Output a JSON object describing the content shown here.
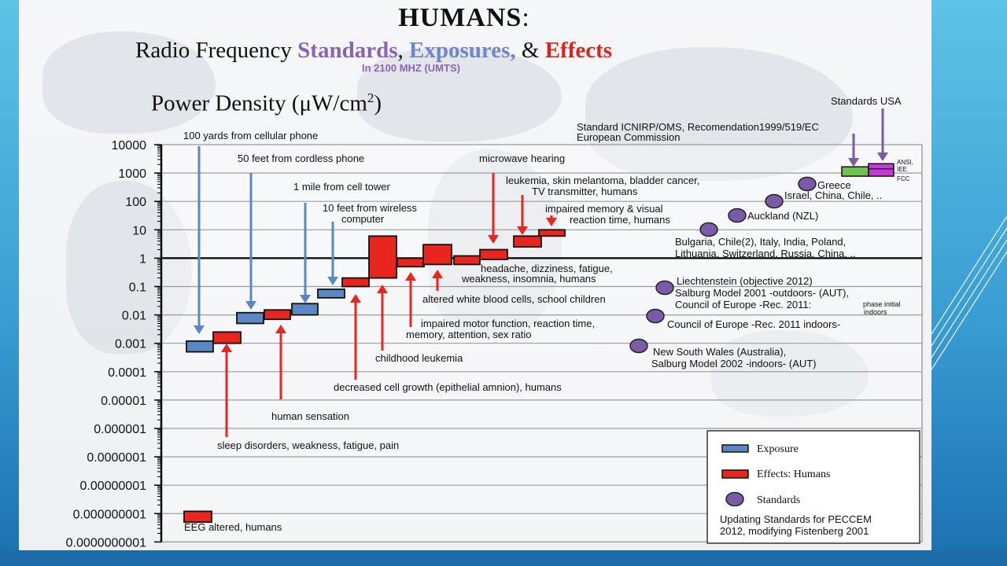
{
  "slide": {
    "title": "HUMANS",
    "title_colon": ":",
    "subtitle_prefix": "Radio Frequency ",
    "subtitle_standards": "Standards",
    "subtitle_comma": ", ",
    "subtitle_exposures": "Exposures,",
    "subtitle_and": " & ",
    "subtitle_effects": "Effects",
    "band_note": "In 2100 MHZ (UMTS)",
    "colors": {
      "exposure": "#5b87c5",
      "effect": "#e8261f",
      "standard": "#7a5ba8",
      "frame_left": "#49aedb",
      "frame_bottom": "#1c6aa8"
    }
  },
  "chart_data": {
    "type": "bar",
    "ylabel": "Power Density (μW/cm²)",
    "yscale": "log",
    "ylim": [
      1e-10,
      10000.0
    ],
    "y_ticks": [
      "10000",
      "1000",
      "100",
      "10",
      "1",
      "0.1",
      "0.01",
      "0.001",
      "0.0001",
      "0.00001",
      "0.000001",
      "0.0000001",
      "0.00000001",
      "0.000000001",
      "0.0000000001"
    ],
    "grid": true,
    "reference_line": 1,
    "exposures": [
      {
        "label": "100 yards from cellular phone",
        "low": 0.0005,
        "high": 0.0012
      },
      {
        "label": "50 feet from cordless phone",
        "low": 0.005,
        "high": 0.012
      },
      {
        "label": "1 mile from cell tower",
        "low": 0.01,
        "high": 0.025
      },
      {
        "label": "10 feet from wireless computer",
        "low": 0.04,
        "high": 0.08
      }
    ],
    "effects": [
      {
        "label": "sleep disorders, weakness, fatigue, pain",
        "low": 0.001,
        "high": 0.0025
      },
      {
        "label": "human sensation",
        "low": 0.007,
        "high": 0.015
      },
      {
        "label": "decreased cell growth (epithelial amnion), humans",
        "low": 0.1,
        "high": 0.2
      },
      {
        "label": "childhood leukemia",
        "low": 0.2,
        "high": 6
      },
      {
        "label": "impaired motor function, reaction time, memory, attention, sex ratio",
        "low": 0.5,
        "high": 1
      },
      {
        "label": "altered white blood cells, school children",
        "low": 0.6,
        "high": 3
      },
      {
        "label": "headache, dizziness, fatigue, weakness, insomnia, humans",
        "low": 0.6,
        "high": 1.2
      },
      {
        "label": "microwave hearing",
        "low": 0.9,
        "high": 2
      },
      {
        "label": "leukemia, skin melantoma, bladder cancer, TV transmitter, humans",
        "low": 2.5,
        "high": 6
      },
      {
        "label": "impaired memory & visual reaction time, humans",
        "low": 6,
        "high": 10
      },
      {
        "label": "EEG altered, humans",
        "low": 5e-10,
        "high": 1.2e-09
      }
    ],
    "standards": [
      {
        "label": "Greece",
        "value": 400
      },
      {
        "label": "Israel, China, Chile, ..",
        "value": 100
      },
      {
        "label": "Auckland (NZL)",
        "value": 30
      },
      {
        "label": "Bulgaria, Chile(2), Italy, India, Poland, Lithuania, Switzerland, Russia, China, ..",
        "value": 10
      },
      {
        "label": "Liechtenstein (objective 2012) Salburg Model 2001 -outdoors- (AUT), Council of Europe -Rec. 2011:",
        "note": "phase initial indoors",
        "value": 0.1
      },
      {
        "label": "Council of Europe -Rec. 2011 indoors-",
        "value": 0.01
      },
      {
        "label": "New South Wales (Australia), Salburg Model 2002 -indoors- (AUT)",
        "value": 0.001
      }
    ],
    "regulatory": [
      {
        "label": "Standard ICNIRP/OMS, Recomendation1999/519/EC European Commission",
        "low": 1000,
        "high": 2000,
        "color": "#6fc24a"
      },
      {
        "label": "Standards USA",
        "sublabels": [
          "ANSI,",
          "IEE",
          "FCC"
        ],
        "low": 1000,
        "high": 2000,
        "color": "#c23bd6"
      }
    ],
    "legend": {
      "position": "bottom-right",
      "exposure": "Exposure",
      "effects": "Effects:  Humans",
      "standards": "Standards",
      "note_prefix": "Updating ",
      "note_bold": "Standards",
      "note_rest": " for PECCEM 2012, modifying Fistenberg 2001"
    }
  }
}
